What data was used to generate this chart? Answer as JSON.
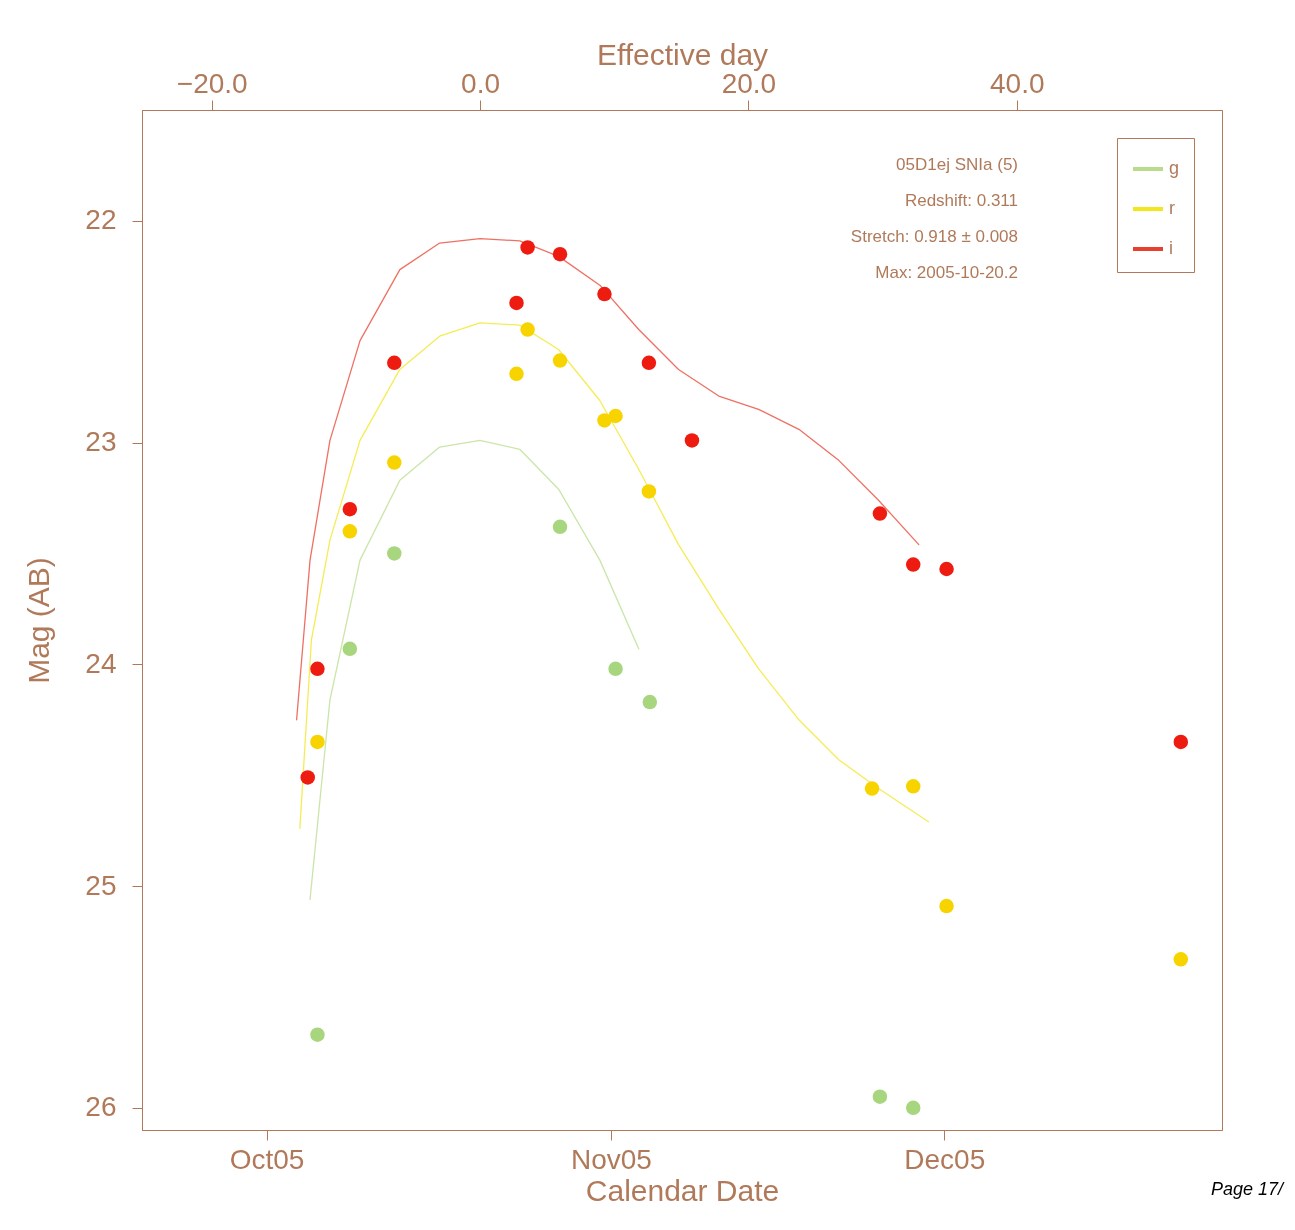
{
  "chart_data": {
    "type": "scatter",
    "xlabel": "Calendar Date",
    "ylabel": "Mag (AB)",
    "x2label": "Effective day",
    "xlim": [
      "2005-09-19T19:00",
      "2005-12-26T00:00"
    ],
    "xticks": [
      {
        "value": "2005-10-01",
        "label": "Oct05"
      },
      {
        "value": "2005-11-01",
        "label": "Nov05"
      },
      {
        "value": "2005-12-01",
        "label": "Dec05"
      }
    ],
    "x2lim": [
      -25.2,
      55.3
    ],
    "x2ticks": [
      {
        "value": -20,
        "label": "−20.0"
      },
      {
        "value": 0,
        "label": "0.0"
      },
      {
        "value": 20,
        "label": "20.0"
      },
      {
        "value": 40,
        "label": "40.0"
      }
    ],
    "ylim": [
      26.1,
      21.5
    ],
    "yticks": [
      22,
      23,
      24,
      25,
      26
    ],
    "grid": false,
    "legend": "top right",
    "marker": "circle",
    "annotations": [
      "05D1ej SNIa (5)",
      "Redshift: 0.311",
      "Stretch: 0.918 ± 0.008",
      "Max: 2005-10-20.2",
      "Page 17/"
    ],
    "series": [
      {
        "type": "line",
        "name": "g",
        "marker": "none",
        "color": "#b8dc8c",
        "x": [
          "2005-10-04T22:00",
          "2005-10-06T17:00",
          "2005-10-09T10:00",
          "2005-10-13T00:00",
          "2005-10-16T14:00",
          "2005-10-20T05:00",
          "2005-10-23T19:00",
          "2005-10-27T07:00",
          "2005-10-31T00:00",
          "2005-11-03T12:00"
        ],
        "values": [
          25.06,
          24.16,
          23.53,
          23.17,
          23.02,
          22.99,
          23.03,
          23.21,
          23.53,
          23.93
        ]
      },
      {
        "type": "line",
        "name": "r",
        "marker": "none",
        "color": "#f2e61c",
        "x": [
          "2005-10-04T00:00",
          "2005-10-05T01:00",
          "2005-10-06T17:00",
          "2005-10-09T10:00",
          "2005-10-13T00:00",
          "2005-10-16T14:00",
          "2005-10-20T05:00",
          "2005-10-23T19:00",
          "2005-10-27T07:00",
          "2005-10-31T00:00",
          "2005-11-03T12:00",
          "2005-11-07T02:00",
          "2005-11-10T17:00",
          "2005-11-14T07:00",
          "2005-11-17T22:00",
          "2005-11-21T12:00",
          "2005-11-25T02:00",
          "2005-11-29T14:00"
        ],
        "values": [
          24.74,
          23.89,
          23.44,
          22.99,
          22.67,
          22.52,
          22.46,
          22.47,
          22.58,
          22.81,
          23.12,
          23.46,
          23.75,
          24.02,
          24.25,
          24.43,
          24.56,
          24.71
        ]
      },
      {
        "type": "line",
        "name": "i",
        "marker": "none",
        "color": "#e8402e",
        "x": [
          "2005-10-03T17:00",
          "2005-10-04T22:00",
          "2005-10-06T17:00",
          "2005-10-09T10:00",
          "2005-10-13T00:00",
          "2005-10-16T14:00",
          "2005-10-20T05:00",
          "2005-10-23T19:00",
          "2005-10-27T07:00",
          "2005-10-31T00:00",
          "2005-11-03T12:00",
          "2005-11-07T02:00",
          "2005-11-10T17:00",
          "2005-11-14T07:00",
          "2005-11-17T22:00",
          "2005-11-21T12:00",
          "2005-11-25T02:00",
          "2005-11-28T17:00"
        ],
        "values": [
          24.25,
          23.53,
          22.99,
          22.54,
          22.22,
          22.1,
          22.08,
          22.09,
          22.16,
          22.29,
          22.49,
          22.67,
          22.79,
          22.85,
          22.94,
          23.08,
          23.26,
          23.46
        ]
      },
      {
        "type": "scatter",
        "color": "#a8d67e",
        "x": [
          "2005-10-05T14:00",
          "2005-10-08T12:00",
          "2005-10-12T12:00",
          "2005-10-27T10:00",
          "2005-11-01T10:00",
          "2005-11-04T12:00",
          "2005-11-25T05:00",
          "2005-11-28T05:00"
        ],
        "values": [
          25.67,
          23.93,
          23.5,
          23.38,
          24.02,
          24.17,
          25.95,
          26.0
        ]
      },
      {
        "type": "scatter",
        "color": "#f7d400",
        "x": [
          "2005-10-05T14:00",
          "2005-10-08T12:00",
          "2005-10-12T12:00",
          "2005-10-23T12:00",
          "2005-10-24T12:00",
          "2005-10-27T10:00",
          "2005-10-31T10:00",
          "2005-11-01T10:00",
          "2005-11-04T10:00",
          "2005-11-24T12:00",
          "2005-11-28T05:00",
          "2005-12-01T05:00",
          "2005-12-22T07:00"
        ],
        "values": [
          24.35,
          23.4,
          23.09,
          22.69,
          22.49,
          22.63,
          22.9,
          22.88,
          23.22,
          24.56,
          24.55,
          25.09,
          25.33
        ]
      },
      {
        "type": "scatter",
        "color": "#ee1c10",
        "x": [
          "2005-10-04T17:00",
          "2005-10-05T14:00",
          "2005-10-08T12:00",
          "2005-10-12T12:00",
          "2005-10-23T12:00",
          "2005-10-24T12:00",
          "2005-10-27T10:00",
          "2005-10-31T10:00",
          "2005-11-04T10:00",
          "2005-11-08T07:00",
          "2005-11-25T05:00",
          "2005-11-28T05:00",
          "2005-12-01T05:00",
          "2005-12-22T07:00"
        ],
        "values": [
          24.51,
          24.02,
          23.3,
          22.64,
          22.37,
          22.12,
          22.15,
          22.33,
          22.64,
          22.99,
          23.32,
          23.55,
          23.57,
          24.35
        ]
      }
    ]
  }
}
